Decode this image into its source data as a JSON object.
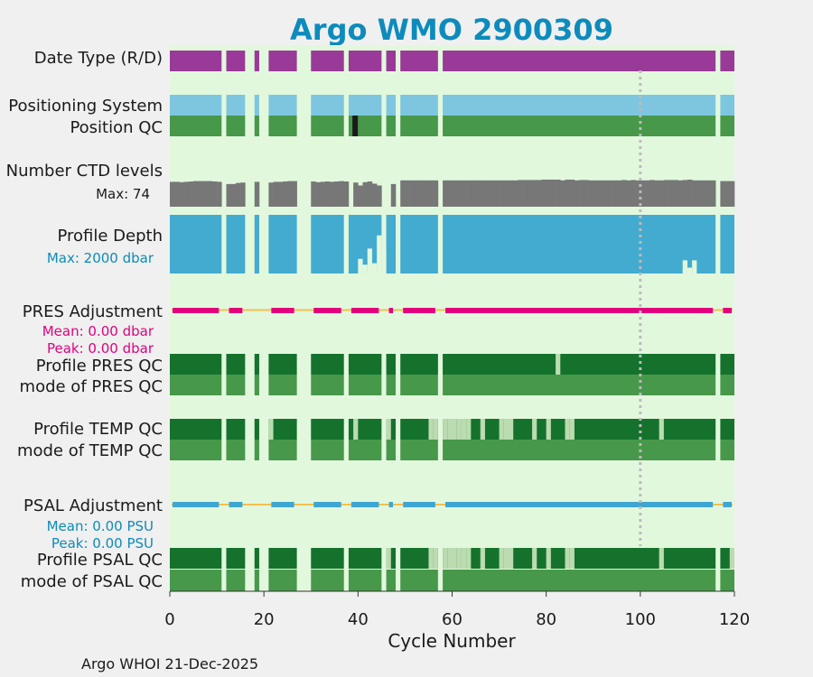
{
  "chart_data": {
    "type": "timeline",
    "title": "Argo WMO 2900309",
    "xlabel": "Cycle Number",
    "xlim": [
      0,
      120
    ],
    "xticks": [
      0,
      20,
      40,
      60,
      80,
      100,
      120
    ],
    "xtick_labels": [
      "0",
      "20",
      "40",
      "60",
      "80",
      "100",
      "120"
    ],
    "reference_cycle": 100,
    "footer": "Argo WHOI 21-Dec-2025",
    "colors": {
      "background": "#e2f8dd",
      "delayed": "#9a3a98",
      "positioning": "#7ec6e0",
      "qc_good": "#47984a",
      "qc_dark": "#14722c",
      "qc_light": "#bbdbb0",
      "qc_black": "#1a1a1a",
      "ctd": "#777777",
      "depth": "#43abd0",
      "pres_adj": "#e3007e",
      "psal_adj": "#3ea6d2",
      "zero_line": "#f0c050",
      "ref_line": "#bbbbbb",
      "title": "#0d8bbd"
    },
    "row_labels": {
      "data_type": "Date Type (R/D)",
      "positioning": "Positioning System",
      "position_qc": "Position QC",
      "ctd_levels": "Number CTD levels",
      "ctd_max": "Max: 74",
      "depth": "Profile Depth",
      "depth_max": "Max: 2000 dbar",
      "pres_adj": "PRES Adjustment",
      "pres_mean": "Mean: 0.00 dbar",
      "pres_peak": "Peak: 0.00 dbar",
      "pres_qc": "Profile PRES QC",
      "pres_mode": "mode of PRES QC",
      "temp_qc": "Profile TEMP QC",
      "temp_mode": "mode of TEMP QC",
      "psal_adj": "PSAL Adjustment",
      "psal_mean": "Mean: 0.00 PSU",
      "psal_peak": "Peak: 0.00 PSU",
      "psal_qc": "Profile PSAL QC",
      "psal_mode": "mode of PSAL QC"
    },
    "data_segments": [
      [
        0,
        11
      ],
      [
        12,
        16
      ],
      [
        18,
        19
      ],
      [
        21,
        27
      ],
      [
        30,
        37
      ],
      [
        38,
        45
      ],
      [
        46,
        48
      ],
      [
        49,
        57
      ],
      [
        58,
        116
      ],
      [
        117,
        120
      ]
    ],
    "position_qc_bad_cycles": [
      39
    ],
    "ctd_levels": {
      "max": 74,
      "values": [
        68,
        68,
        67,
        68,
        69,
        70,
        70,
        70,
        70,
        69,
        68,
        0,
        62,
        62,
        65,
        66,
        0,
        0,
        68,
        0,
        0,
        66,
        68,
        68,
        69,
        70,
        70,
        0,
        0,
        0,
        69,
        67,
        68,
        69,
        68,
        69,
        70,
        69,
        0,
        66,
        58,
        67,
        69,
        63,
        58,
        0,
        0,
        62,
        0,
        72,
        72,
        72,
        72,
        72,
        72,
        72,
        72,
        0,
        72,
        72,
        72,
        72,
        72,
        72,
        72,
        72,
        72,
        72,
        72,
        72,
        72,
        72,
        72,
        72,
        73,
        73,
        73,
        73,
        73,
        74,
        74,
        74,
        74,
        72,
        74,
        74,
        72,
        73,
        73,
        72,
        72,
        72,
        72,
        72,
        72,
        72,
        73,
        72,
        73,
        72,
        72,
        72,
        73,
        72,
        72,
        73,
        73,
        73,
        72,
        73,
        74,
        72,
        72,
        72,
        72,
        72,
        0,
        70,
        70,
        70
      ]
    },
    "profile_depth": {
      "max": 2000,
      "short_profiles": [
        [
          40,
          1500
        ],
        [
          41,
          1700
        ],
        [
          42,
          1150
        ],
        [
          43,
          1650
        ],
        [
          44,
          700
        ],
        [
          45,
          1300
        ],
        [
          109,
          1550
        ],
        [
          110,
          1800
        ],
        [
          111,
          1550
        ]
      ]
    },
    "pres_qc_light_cycles": [
      82
    ],
    "temp_qc_light_cycles": [
      21,
      39,
      46,
      55,
      56,
      58,
      59,
      60,
      61,
      62,
      63,
      66,
      70,
      71,
      72,
      77,
      80,
      84,
      85,
      104
    ],
    "psal_qc_light_cycles": [
      46,
      55,
      56,
      58,
      59,
      60,
      61,
      62,
      63,
      66,
      70,
      71,
      72,
      77,
      80,
      84,
      85,
      104,
      119
    ]
  }
}
